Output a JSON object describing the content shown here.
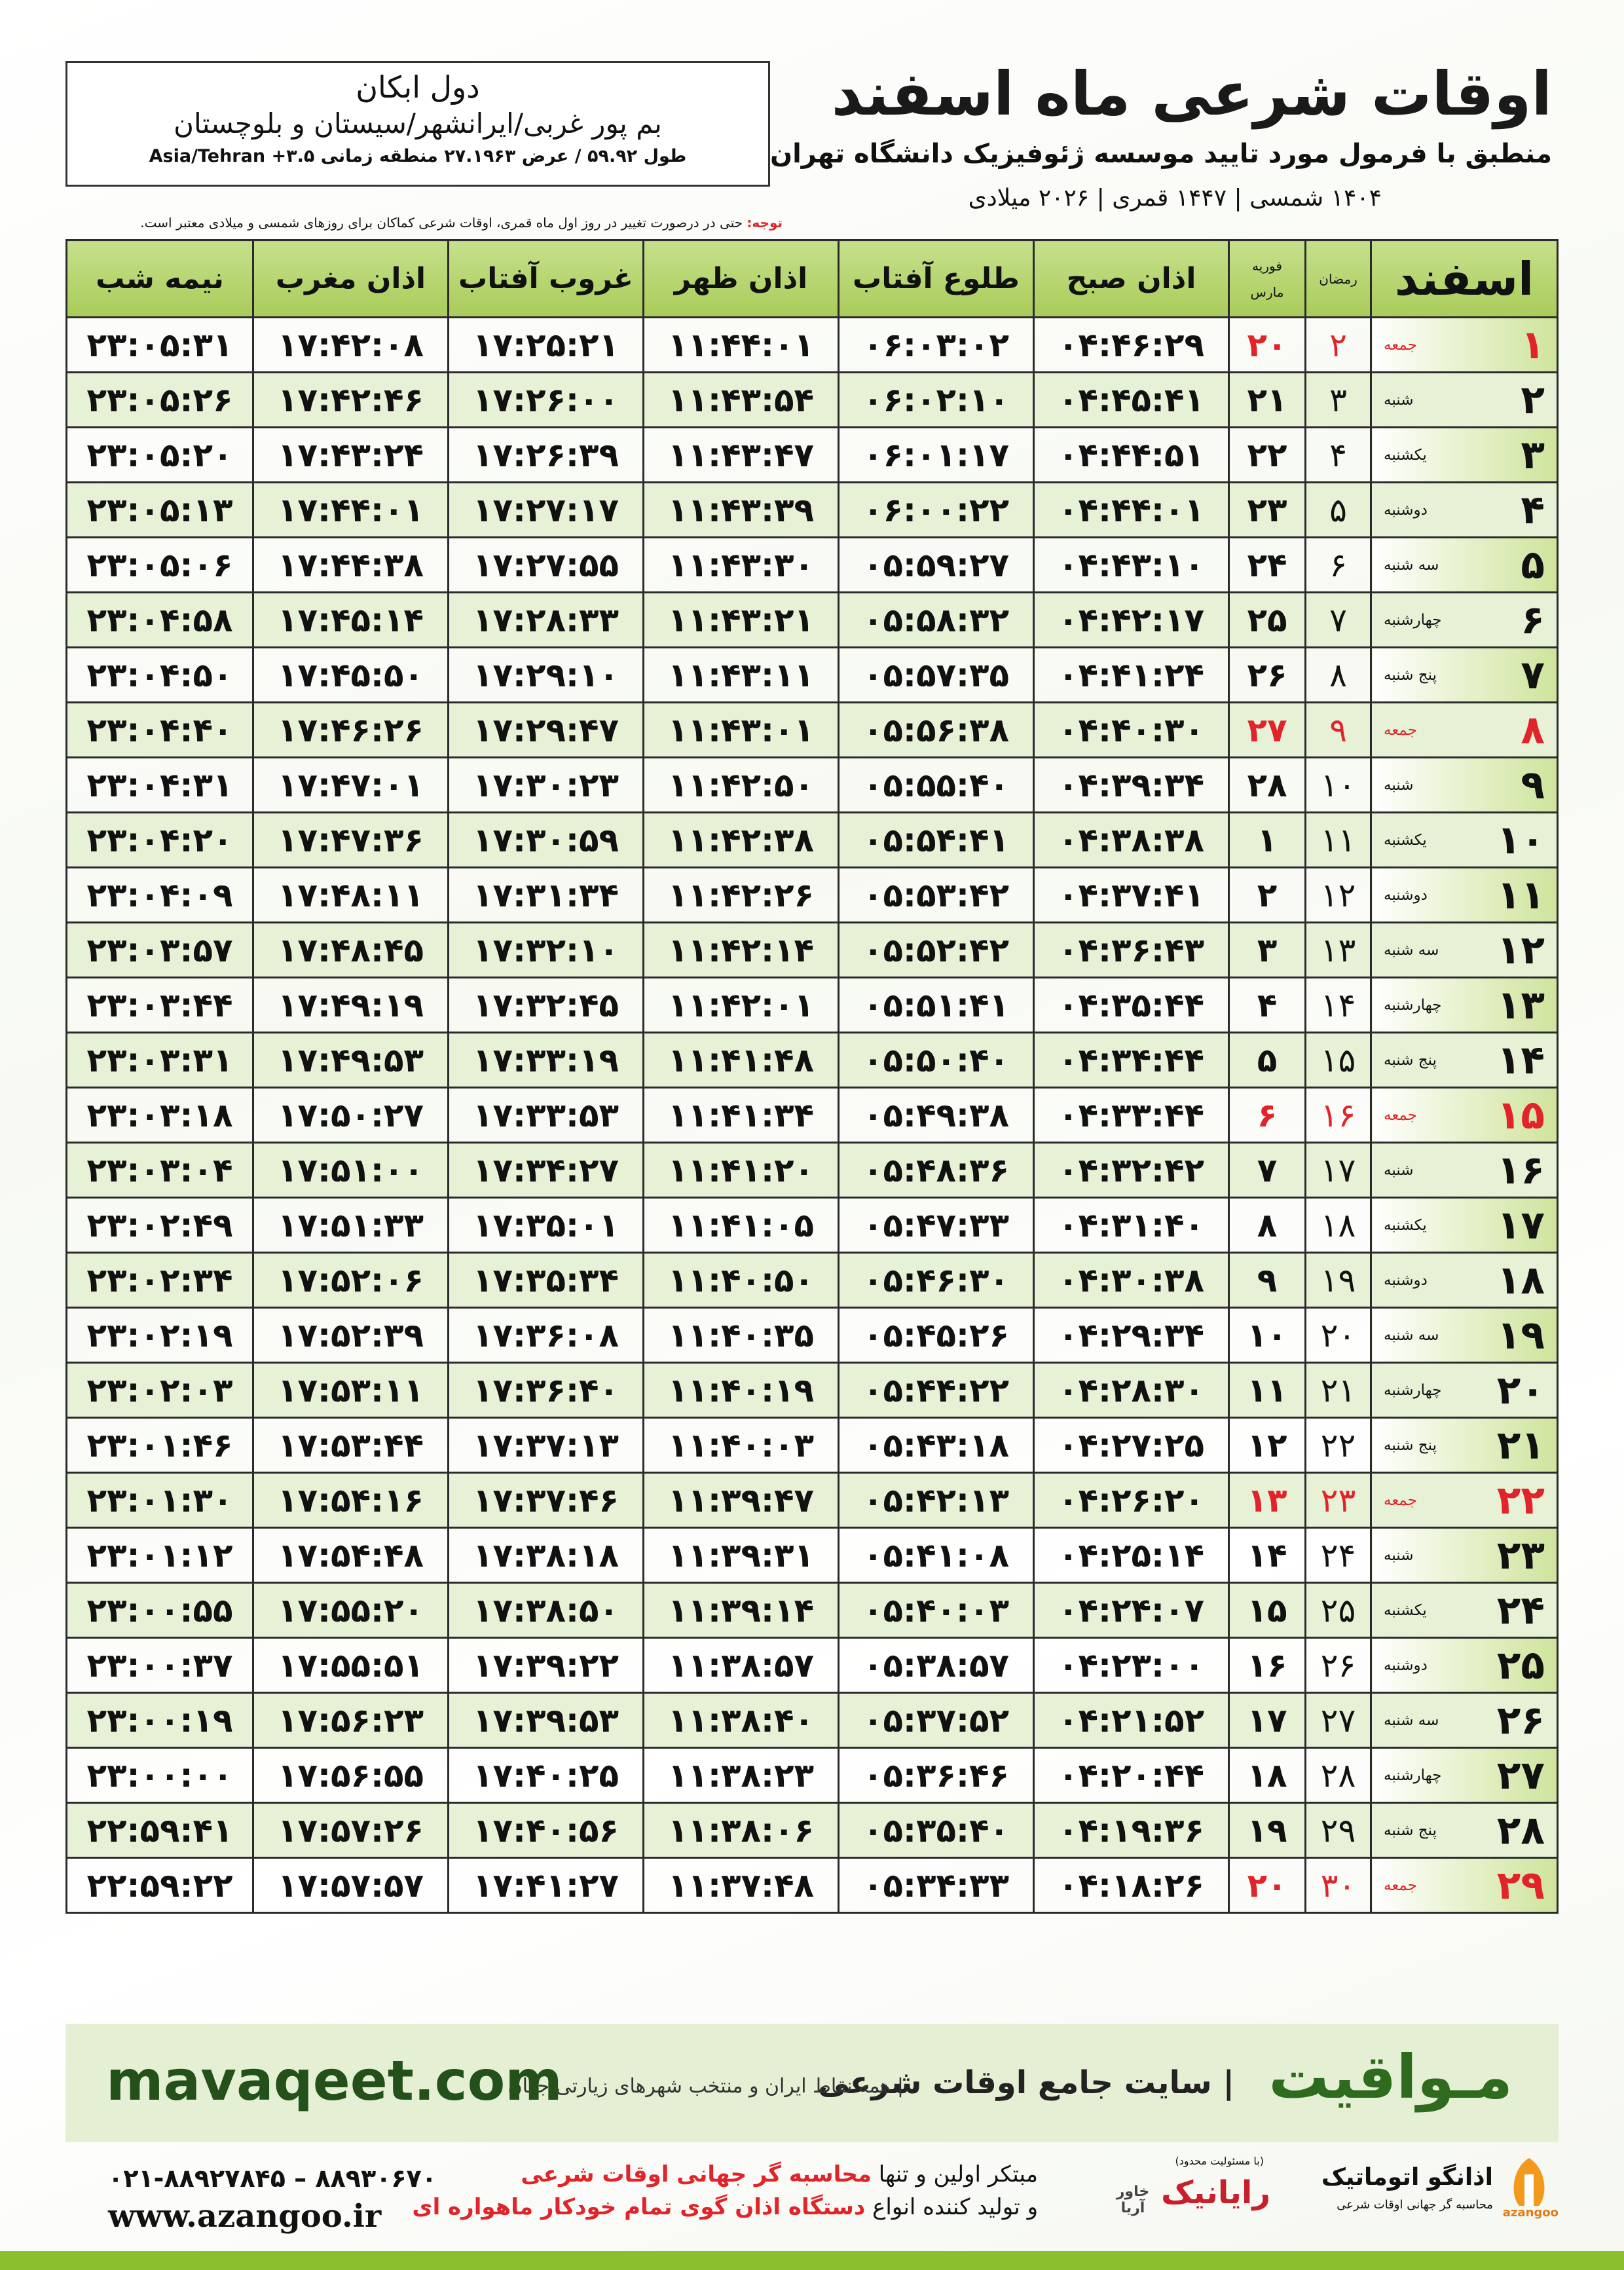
{
  "header": {
    "title": "اوقات شرعی ماه اسفند",
    "subtitle": "منطبق با فرمول مورد تایید موسسه ژئوفیزیک دانشگاه تهران",
    "dates": "۱۴۰۴ شمسی | ۱۴۴۷ قمری | ۲۰۲۶ میلادی"
  },
  "location": {
    "name": "دول ابکان",
    "region": "بم پور غربی/ایرانشهر/سیستان و بلوچستان",
    "coords": "طول ۵۹.۹۲ / عرض ۲۷.۱۹۶۳ منطقه زمانی ۳.۵+ Asia/Tehran"
  },
  "note": {
    "label": "توجه:",
    "text": "حتی در درصورت تغییر در روز اول ماه قمری، اوقات شرعی کماکان برای روزهای شمسی و میلادی معتبر است."
  },
  "table": {
    "columns": {
      "month": "اسفند",
      "ramadan": "رمضان",
      "gregorian_top": "فوریه",
      "gregorian_bottom": "مارس",
      "times": [
        "اذان صبح",
        "طلوع آفتاب",
        "اذان ظهر",
        "غروب آفتاب",
        "اذان مغرب",
        "نیمه شب"
      ]
    },
    "rows": [
      {
        "day": "۱",
        "weekday": "جمعه",
        "ramadan": "۲",
        "gregorian": "۲۰",
        "color": "#e0242a",
        "times": [
          "۰۴:۴۶:۲۹",
          "۰۶:۰۳:۰۲",
          "۱۱:۴۴:۰۱",
          "۱۷:۲۵:۲۱",
          "۱۷:۴۲:۰۸",
          "۲۳:۰۵:۳۱"
        ]
      },
      {
        "day": "۲",
        "weekday": "شنبه",
        "ramadan": "۳",
        "gregorian": "۲۱",
        "color": "#111111",
        "times": [
          "۰۴:۴۵:۴۱",
          "۰۶:۰۲:۱۰",
          "۱۱:۴۳:۵۴",
          "۱۷:۲۶:۰۰",
          "۱۷:۴۲:۴۶",
          "۲۳:۰۵:۲۶"
        ]
      },
      {
        "day": "۳",
        "weekday": "یکشنبه",
        "ramadan": "۴",
        "gregorian": "۲۲",
        "color": "#111111",
        "times": [
          "۰۴:۴۴:۵۱",
          "۰۶:۰۱:۱۷",
          "۱۱:۴۳:۴۷",
          "۱۷:۲۶:۳۹",
          "۱۷:۴۳:۲۴",
          "۲۳:۰۵:۲۰"
        ]
      },
      {
        "day": "۴",
        "weekday": "دوشنبه",
        "ramadan": "۵",
        "gregorian": "۲۳",
        "color": "#111111",
        "times": [
          "۰۴:۴۴:۰۱",
          "۰۶:۰۰:۲۲",
          "۱۱:۴۳:۳۹",
          "۱۷:۲۷:۱۷",
          "۱۷:۴۴:۰۱",
          "۲۳:۰۵:۱۳"
        ]
      },
      {
        "day": "۵",
        "weekday": "سه شنبه",
        "ramadan": "۶",
        "gregorian": "۲۴",
        "color": "#111111",
        "times": [
          "۰۴:۴۳:۱۰",
          "۰۵:۵۹:۲۷",
          "۱۱:۴۳:۳۰",
          "۱۷:۲۷:۵۵",
          "۱۷:۴۴:۳۸",
          "۲۳:۰۵:۰۶"
        ]
      },
      {
        "day": "۶",
        "weekday": "چهارشنبه",
        "ramadan": "۷",
        "gregorian": "۲۵",
        "color": "#111111",
        "times": [
          "۰۴:۴۲:۱۷",
          "۰۵:۵۸:۳۲",
          "۱۱:۴۳:۲۱",
          "۱۷:۲۸:۳۳",
          "۱۷:۴۵:۱۴",
          "۲۳:۰۴:۵۸"
        ]
      },
      {
        "day": "۷",
        "weekday": "پنج شنبه",
        "ramadan": "۸",
        "gregorian": "۲۶",
        "color": "#111111",
        "times": [
          "۰۴:۴۱:۲۴",
          "۰۵:۵۷:۳۵",
          "۱۱:۴۳:۱۱",
          "۱۷:۲۹:۱۰",
          "۱۷:۴۵:۵۰",
          "۲۳:۰۴:۵۰"
        ]
      },
      {
        "day": "۸",
        "weekday": "جمعه",
        "ramadan": "۹",
        "gregorian": "۲۷",
        "color": "#e0242a",
        "times": [
          "۰۴:۴۰:۳۰",
          "۰۵:۵۶:۳۸",
          "۱۱:۴۳:۰۱",
          "۱۷:۲۹:۴۷",
          "۱۷:۴۶:۲۶",
          "۲۳:۰۴:۴۰"
        ]
      },
      {
        "day": "۹",
        "weekday": "شنبه",
        "ramadan": "۱۰",
        "gregorian": "۲۸",
        "color": "#111111",
        "times": [
          "۰۴:۳۹:۳۴",
          "۰۵:۵۵:۴۰",
          "۱۱:۴۲:۵۰",
          "۱۷:۳۰:۲۳",
          "۱۷:۴۷:۰۱",
          "۲۳:۰۴:۳۱"
        ]
      },
      {
        "day": "۱۰",
        "weekday": "یکشنبه",
        "ramadan": "۱۱",
        "gregorian": "۱",
        "color": "#111111",
        "times": [
          "۰۴:۳۸:۳۸",
          "۰۵:۵۴:۴۱",
          "۱۱:۴۲:۳۸",
          "۱۷:۳۰:۵۹",
          "۱۷:۴۷:۳۶",
          "۲۳:۰۴:۲۰"
        ]
      },
      {
        "day": "۱۱",
        "weekday": "دوشنبه",
        "ramadan": "۱۲",
        "gregorian": "۲",
        "color": "#111111",
        "times": [
          "۰۴:۳۷:۴۱",
          "۰۵:۵۳:۴۲",
          "۱۱:۴۲:۲۶",
          "۱۷:۳۱:۳۴",
          "۱۷:۴۸:۱۱",
          "۲۳:۰۴:۰۹"
        ]
      },
      {
        "day": "۱۲",
        "weekday": "سه شنبه",
        "ramadan": "۱۳",
        "gregorian": "۳",
        "color": "#111111",
        "times": [
          "۰۴:۳۶:۴۳",
          "۰۵:۵۲:۴۲",
          "۱۱:۴۲:۱۴",
          "۱۷:۳۲:۱۰",
          "۱۷:۴۸:۴۵",
          "۲۳:۰۳:۵۷"
        ]
      },
      {
        "day": "۱۳",
        "weekday": "چهارشنبه",
        "ramadan": "۱۴",
        "gregorian": "۴",
        "color": "#111111",
        "times": [
          "۰۴:۳۵:۴۴",
          "۰۵:۵۱:۴۱",
          "۱۱:۴۲:۰۱",
          "۱۷:۳۲:۴۵",
          "۱۷:۴۹:۱۹",
          "۲۳:۰۳:۴۴"
        ]
      },
      {
        "day": "۱۴",
        "weekday": "پنج شنبه",
        "ramadan": "۱۵",
        "gregorian": "۵",
        "color": "#111111",
        "times": [
          "۰۴:۳۴:۴۴",
          "۰۵:۵۰:۴۰",
          "۱۱:۴۱:۴۸",
          "۱۷:۳۳:۱۹",
          "۱۷:۴۹:۵۳",
          "۲۳:۰۳:۳۱"
        ]
      },
      {
        "day": "۱۵",
        "weekday": "جمعه",
        "ramadan": "۱۶",
        "gregorian": "۶",
        "color": "#e0242a",
        "times": [
          "۰۴:۳۳:۴۴",
          "۰۵:۴۹:۳۸",
          "۱۱:۴۱:۳۴",
          "۱۷:۳۳:۵۳",
          "۱۷:۵۰:۲۷",
          "۲۳:۰۳:۱۸"
        ]
      },
      {
        "day": "۱۶",
        "weekday": "شنبه",
        "ramadan": "۱۷",
        "gregorian": "۷",
        "color": "#111111",
        "times": [
          "۰۴:۳۲:۴۲",
          "۰۵:۴۸:۳۶",
          "۱۱:۴۱:۲۰",
          "۱۷:۳۴:۲۷",
          "۱۷:۵۱:۰۰",
          "۲۳:۰۳:۰۴"
        ]
      },
      {
        "day": "۱۷",
        "weekday": "یکشنبه",
        "ramadan": "۱۸",
        "gregorian": "۸",
        "color": "#111111",
        "times": [
          "۰۴:۳۱:۴۰",
          "۰۵:۴۷:۳۳",
          "۱۱:۴۱:۰۵",
          "۱۷:۳۵:۰۱",
          "۱۷:۵۱:۳۳",
          "۲۳:۰۲:۴۹"
        ]
      },
      {
        "day": "۱۸",
        "weekday": "دوشنبه",
        "ramadan": "۱۹",
        "gregorian": "۹",
        "color": "#111111",
        "times": [
          "۰۴:۳۰:۳۸",
          "۰۵:۴۶:۳۰",
          "۱۱:۴۰:۵۰",
          "۱۷:۳۵:۳۴",
          "۱۷:۵۲:۰۶",
          "۲۳:۰۲:۳۴"
        ]
      },
      {
        "day": "۱۹",
        "weekday": "سه شنبه",
        "ramadan": "۲۰",
        "gregorian": "۱۰",
        "color": "#111111",
        "times": [
          "۰۴:۲۹:۳۴",
          "۰۵:۴۵:۲۶",
          "۱۱:۴۰:۳۵",
          "۱۷:۳۶:۰۸",
          "۱۷:۵۲:۳۹",
          "۲۳:۰۲:۱۹"
        ]
      },
      {
        "day": "۲۰",
        "weekday": "چهارشنبه",
        "ramadan": "۲۱",
        "gregorian": "۱۱",
        "color": "#111111",
        "times": [
          "۰۴:۲۸:۳۰",
          "۰۵:۴۴:۲۲",
          "۱۱:۴۰:۱۹",
          "۱۷:۳۶:۴۰",
          "۱۷:۵۳:۱۱",
          "۲۳:۰۲:۰۳"
        ]
      },
      {
        "day": "۲۱",
        "weekday": "پنج شنبه",
        "ramadan": "۲۲",
        "gregorian": "۱۲",
        "color": "#111111",
        "times": [
          "۰۴:۲۷:۲۵",
          "۰۵:۴۳:۱۸",
          "۱۱:۴۰:۰۳",
          "۱۷:۳۷:۱۳",
          "۱۷:۵۳:۴۴",
          "۲۳:۰۱:۴۶"
        ]
      },
      {
        "day": "۲۲",
        "weekday": "جمعه",
        "ramadan": "۲۳",
        "gregorian": "۱۳",
        "color": "#e0242a",
        "times": [
          "۰۴:۲۶:۲۰",
          "۰۵:۴۲:۱۳",
          "۱۱:۳۹:۴۷",
          "۱۷:۳۷:۴۶",
          "۱۷:۵۴:۱۶",
          "۲۳:۰۱:۳۰"
        ]
      },
      {
        "day": "۲۳",
        "weekday": "شنبه",
        "ramadan": "۲۴",
        "gregorian": "۱۴",
        "color": "#111111",
        "times": [
          "۰۴:۲۵:۱۴",
          "۰۵:۴۱:۰۸",
          "۱۱:۳۹:۳۱",
          "۱۷:۳۸:۱۸",
          "۱۷:۵۴:۴۸",
          "۲۳:۰۱:۱۲"
        ]
      },
      {
        "day": "۲۴",
        "weekday": "یکشنبه",
        "ramadan": "۲۵",
        "gregorian": "۱۵",
        "color": "#111111",
        "times": [
          "۰۴:۲۴:۰۷",
          "۰۵:۴۰:۰۳",
          "۱۱:۳۹:۱۴",
          "۱۷:۳۸:۵۰",
          "۱۷:۵۵:۲۰",
          "۲۳:۰۰:۵۵"
        ]
      },
      {
        "day": "۲۵",
        "weekday": "دوشنبه",
        "ramadan": "۲۶",
        "gregorian": "۱۶",
        "color": "#111111",
        "times": [
          "۰۴:۲۳:۰۰",
          "۰۵:۳۸:۵۷",
          "۱۱:۳۸:۵۷",
          "۱۷:۳۹:۲۲",
          "۱۷:۵۵:۵۱",
          "۲۳:۰۰:۳۷"
        ]
      },
      {
        "day": "۲۶",
        "weekday": "سه شنبه",
        "ramadan": "۲۷",
        "gregorian": "۱۷",
        "color": "#111111",
        "times": [
          "۰۴:۲۱:۵۲",
          "۰۵:۳۷:۵۲",
          "۱۱:۳۸:۴۰",
          "۱۷:۳۹:۵۳",
          "۱۷:۵۶:۲۳",
          "۲۳:۰۰:۱۹"
        ]
      },
      {
        "day": "۲۷",
        "weekday": "چهارشنبه",
        "ramadan": "۲۸",
        "gregorian": "۱۸",
        "color": "#111111",
        "times": [
          "۰۴:۲۰:۴۴",
          "۰۵:۳۶:۴۶",
          "۱۱:۳۸:۲۳",
          "۱۷:۴۰:۲۵",
          "۱۷:۵۶:۵۵",
          "۲۳:۰۰:۰۰"
        ]
      },
      {
        "day": "۲۸",
        "weekday": "پنج شنبه",
        "ramadan": "۲۹",
        "gregorian": "۱۹",
        "color": "#111111",
        "times": [
          "۰۴:۱۹:۳۶",
          "۰۵:۳۵:۴۰",
          "۱۱:۳۸:۰۶",
          "۱۷:۴۰:۵۶",
          "۱۷:۵۷:۲۶",
          "۲۲:۵۹:۴۱"
        ]
      },
      {
        "day": "۲۹",
        "weekday": "جمعه",
        "ramadan": "۳۰",
        "gregorian": "۲۰",
        "color": "#e0242a",
        "times": [
          "۰۴:۱۸:۲۶",
          "۰۵:۳۴:۳۳",
          "۱۱:۳۷:۴۸",
          "۱۷:۴۱:۲۷",
          "۱۷:۵۷:۵۷",
          "۲۲:۵۹:۲۲"
        ]
      }
    ]
  },
  "footer": {
    "brand": "مـواقیت",
    "tagline": "| سایت جامع اوقات شرعی",
    "tagline_sub": "| همه نقاط ایران و منتخب شهرهای زیارتی جهان",
    "site": "mavaqeet.com",
    "phones": "۰۲۱-۸۸۹۲۷۸۴۵ – ۸۸۹۳۰۶۷۰",
    "web": "www.azangoo.ir",
    "line1_a": "مبتکر اولین و تنها ",
    "line1_b": "محاسبه گر جهانی اوقات شرعی",
    "line2_a": "و تولید کننده انواع ",
    "line2_b": "دستگاه اذان گوی تمام خودکار ماهواره ای",
    "logo1_note": "(با مسئولیت محدود)",
    "logo1": "رایانیک",
    "logo1_sub": "خاور آریا",
    "logo2": "اذانگو اتوماتیک",
    "logo2_sub": "محاسبه گر جهانی اوقات شرعی",
    "logo2_en": "azangoo"
  }
}
